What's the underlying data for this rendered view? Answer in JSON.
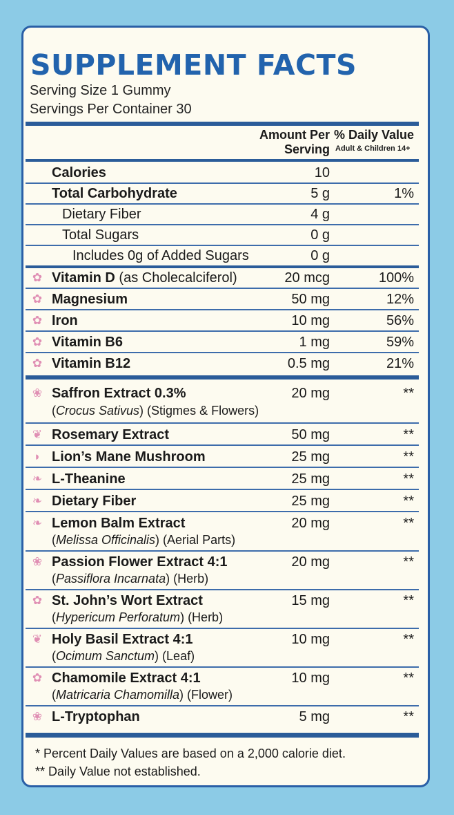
{
  "header": {
    "title": "SUPPLEMENT FACTS",
    "serving_size": "Serving Size 1 Gummy",
    "servings_per_container": "Servings Per Container 30"
  },
  "columns": {
    "amount_line1": "Amount Per",
    "amount_line2": "Serving",
    "dv_line1": "% Daily Value",
    "dv_line2": "Adult & Children 14+"
  },
  "rows": [
    {
      "name": "Calories",
      "amount": "10",
      "dv": ""
    },
    {
      "name": "Total Carbohydrate",
      "amount": "5 g",
      "dv": "1%"
    },
    {
      "name": "Dietary Fiber",
      "amount": "4 g",
      "dv": ""
    },
    {
      "name": "Total Sugars",
      "amount": "0 g",
      "dv": ""
    },
    {
      "name": "Includes 0g of Added Sugars",
      "amount": "0 g",
      "dv": ""
    },
    {
      "name": "Vitamin D",
      "note": " (as Cholecalciferol)",
      "amount": "20 mcg",
      "dv": "100%",
      "icon": "flower-icon"
    },
    {
      "name": "Magnesium",
      "amount": "50 mg",
      "dv": "12%",
      "icon": "flower-icon"
    },
    {
      "name": "Iron",
      "amount": "10 mg",
      "dv": "56%",
      "icon": "flower-icon"
    },
    {
      "name": "Vitamin B6",
      "amount": "1 mg",
      "dv": "59%",
      "icon": "flower-icon"
    },
    {
      "name": "Vitamin B12",
      "amount": "0.5 mg",
      "dv": "21%",
      "icon": "flower-icon"
    },
    {
      "name": "Saffron Extract 0.3%",
      "latin": "Crocus Sativus",
      "part": " (Stigmes & Flowers)",
      "amount": "20 mg",
      "dv": "**",
      "icon": "lotus-icon"
    },
    {
      "name": "Rosemary Extract",
      "amount": "50 mg",
      "dv": "**",
      "icon": "sprig-icon"
    },
    {
      "name": "Lion’s Mane Mushroom",
      "amount": "25 mg",
      "dv": "**",
      "icon": "mushroom-icon"
    },
    {
      "name": "L-Theanine",
      "amount": "25 mg",
      "dv": "**",
      "icon": "leaf-icon"
    },
    {
      "name": "Dietary Fiber",
      "amount": "25 mg",
      "dv": "**",
      "icon": "leaf-icon"
    },
    {
      "name": "Lemon Balm Extract",
      "latin": "Melissa Officinalis",
      "part": " (Aerial Parts)",
      "amount": "20 mg",
      "dv": "**",
      "icon": "leaf-icon"
    },
    {
      "name": "Passion Flower Extract 4:1",
      "latin": "Passiflora Incarnata",
      "part": " (Herb)",
      "amount": "20 mg",
      "dv": "**",
      "icon": "lotus-icon"
    },
    {
      "name": "St. John’s Wort Extract",
      "latin": "Hypericum Perforatum",
      "part": " (Herb)",
      "amount": "15 mg",
      "dv": "**",
      "icon": "flower-icon"
    },
    {
      "name": "Holy Basil Extract 4:1",
      "latin": "Ocimum Sanctum",
      "part": " (Leaf)",
      "amount": "10 mg",
      "dv": "**",
      "icon": "sprig-icon"
    },
    {
      "name": "Chamomile Extract 4:1",
      "latin": "Matricaria Chamomilla",
      "part": " (Flower)",
      "amount": "10 mg",
      "dv": "**",
      "icon": "flower-icon"
    },
    {
      "name": "L-Tryptophan",
      "amount": "5 mg",
      "dv": "**",
      "icon": "lotus-icon"
    }
  ],
  "footnotes": {
    "line1": "* Percent Daily Values are based on a 2,000 calorie diet.",
    "line2": "** Daily Value not established."
  },
  "colors": {
    "title": "#2263ad",
    "border": "#2a5fa6",
    "background": "#8ccbe6",
    "panel": "#fdfbf0",
    "icon": "#e08fb4"
  }
}
